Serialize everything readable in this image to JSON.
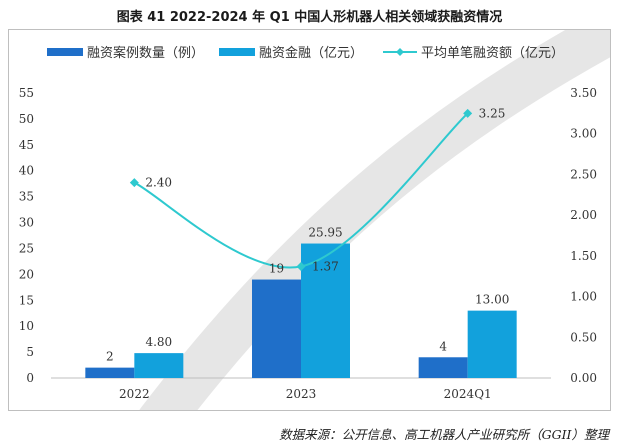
{
  "figure": {
    "title": "图表 41   2022-2024 年 Q1 中国人形机器人相关领域获融资情况",
    "source": "数据来源：公开信息、高工机器人产业研究所（GGII）整理"
  },
  "colors": {
    "bar_count": "#1f6fc9",
    "bar_amount": "#12a1dc",
    "line_avg": "#2ec9cf",
    "watermark": "#e6e6e6",
    "axis": "#bfbfbf",
    "text": "#333333"
  },
  "chart_data": {
    "type": "bar",
    "categories": [
      "2022",
      "2023",
      "2024Q1"
    ],
    "series": [
      {
        "name": "融资案例数量（例）",
        "type": "bar",
        "axis": "left",
        "values": [
          2,
          19,
          4
        ],
        "labels": [
          "2",
          "19",
          "4"
        ]
      },
      {
        "name": "融资金融（亿元）",
        "type": "bar",
        "axis": "left",
        "values": [
          4.8,
          25.95,
          13.0
        ],
        "labels": [
          "4.80",
          "25.95",
          "13.00"
        ]
      },
      {
        "name": "平均单笔融资额（亿元）",
        "type": "line",
        "axis": "right",
        "smooth": true,
        "marker": "diamond",
        "values": [
          2.4,
          1.37,
          3.25
        ],
        "labels": [
          "2.40",
          "1.37",
          "3.25"
        ]
      }
    ],
    "y_left": {
      "min": 0,
      "max": 55,
      "ticks": [
        "0",
        "5",
        "10",
        "15",
        "20",
        "25",
        "30",
        "35",
        "40",
        "45",
        "50",
        "55"
      ]
    },
    "y_right": {
      "min": 0,
      "max": 3.5,
      "ticks": [
        "0.00",
        "0.50",
        "1.00",
        "1.50",
        "2.00",
        "2.50",
        "3.00",
        "3.50"
      ]
    },
    "legend_position": "top",
    "grid": false
  }
}
